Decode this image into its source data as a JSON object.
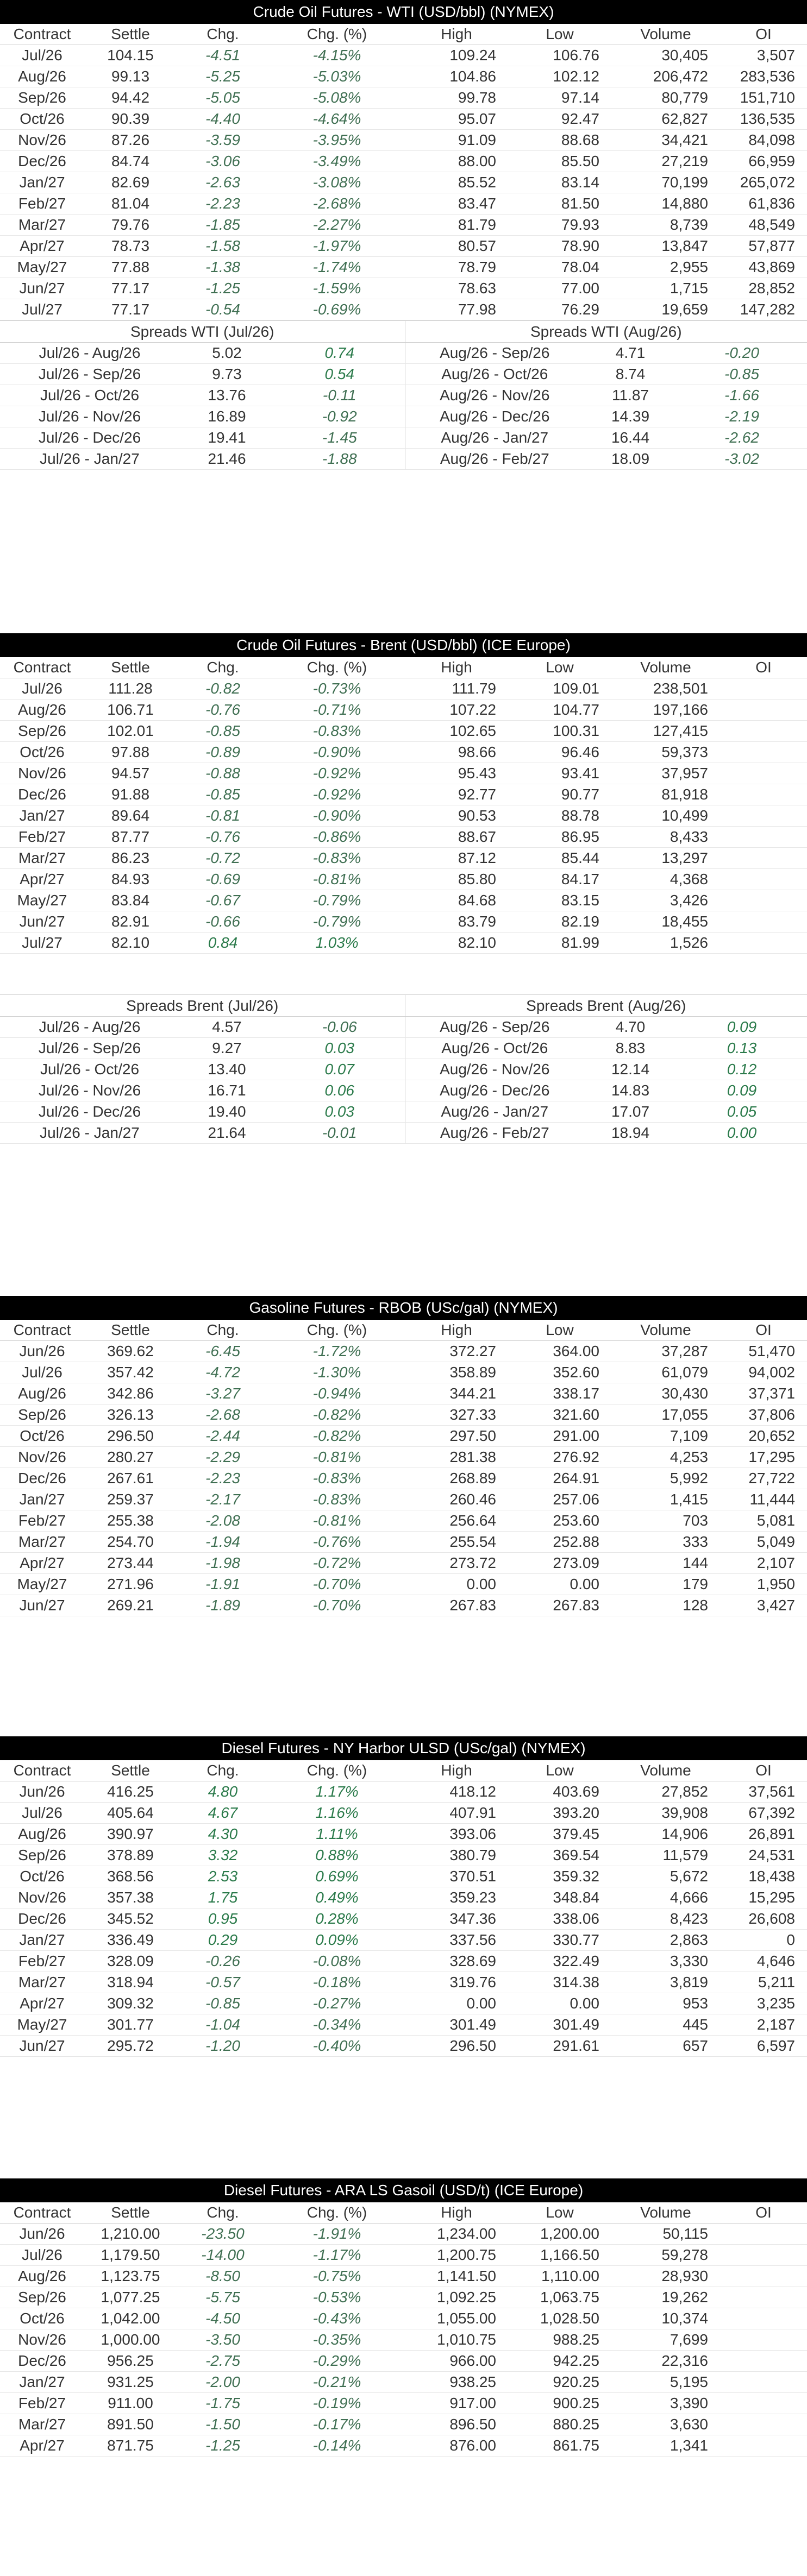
{
  "wti": {
    "title": "Crude Oil Futures - WTI (USD/bbl) (NYMEX)",
    "headers": [
      "Contract",
      "Settle",
      "Chg.",
      "Chg. (%)",
      "High",
      "Low",
      "Volume",
      "OI"
    ],
    "rows": [
      [
        "Jul/26",
        "104.15",
        "-4.51",
        "-4.15%",
        "109.24",
        "106.76",
        "30,405",
        "3,507"
      ],
      [
        "Aug/26",
        "99.13",
        "-5.25",
        "-5.03%",
        "104.86",
        "102.12",
        "206,472",
        "283,536"
      ],
      [
        "Sep/26",
        "94.42",
        "-5.05",
        "-5.08%",
        "99.78",
        "97.14",
        "80,779",
        "151,710"
      ],
      [
        "Oct/26",
        "90.39",
        "-4.40",
        "-4.64%",
        "95.07",
        "92.47",
        "62,827",
        "136,535"
      ],
      [
        "Nov/26",
        "87.26",
        "-3.59",
        "-3.95%",
        "91.09",
        "88.68",
        "34,421",
        "84,098"
      ],
      [
        "Dec/26",
        "84.74",
        "-3.06",
        "-3.49%",
        "88.00",
        "85.50",
        "27,219",
        "66,959"
      ],
      [
        "Jan/27",
        "82.69",
        "-2.63",
        "-3.08%",
        "85.52",
        "83.14",
        "70,199",
        "265,072"
      ],
      [
        "Feb/27",
        "81.04",
        "-2.23",
        "-2.68%",
        "83.47",
        "81.50",
        "14,880",
        "61,836"
      ],
      [
        "Mar/27",
        "79.76",
        "-1.85",
        "-2.27%",
        "81.79",
        "79.93",
        "8,739",
        "48,549"
      ],
      [
        "Apr/27",
        "78.73",
        "-1.58",
        "-1.97%",
        "80.57",
        "78.90",
        "13,847",
        "57,877"
      ],
      [
        "May/27",
        "77.88",
        "-1.38",
        "-1.74%",
        "78.79",
        "78.04",
        "2,955",
        "43,869"
      ],
      [
        "Jun/27",
        "77.17",
        "-1.25",
        "-1.59%",
        "78.63",
        "77.00",
        "1,715",
        "28,852"
      ],
      [
        "Jul/27",
        "77.17",
        "-0.54",
        "-0.69%",
        "77.98",
        "76.29",
        "19,659",
        "147,282"
      ]
    ],
    "spreads_left_title": "Spreads WTI (Jul/26)",
    "spreads_right_title": "Spreads WTI (Aug/26)",
    "spreads": [
      [
        "Jul/26 - Aug/26",
        "5.02",
        "0.74",
        "Aug/26 - Sep/26",
        "4.71",
        "-0.20"
      ],
      [
        "Jul/26 - Sep/26",
        "9.73",
        "0.54",
        "Aug/26 - Oct/26",
        "8.74",
        "-0.85"
      ],
      [
        "Jul/26 - Oct/26",
        "13.76",
        "-0.11",
        "Aug/26 - Nov/26",
        "11.87",
        "-1.66"
      ],
      [
        "Jul/26 - Nov/26",
        "16.89",
        "-0.92",
        "Aug/26 - Dec/26",
        "14.39",
        "-2.19"
      ],
      [
        "Jul/26 - Dec/26",
        "19.41",
        "-1.45",
        "Aug/26 - Jan/27",
        "16.44",
        "-2.62"
      ],
      [
        "Jul/26 - Jan/27",
        "21.46",
        "-1.88",
        "Aug/26 - Feb/27",
        "18.09",
        "-3.02"
      ]
    ]
  },
  "brent": {
    "title": "Crude Oil Futures - Brent (USD/bbl) (ICE Europe)",
    "headers": [
      "Contract",
      "Settle",
      "Chg.",
      "Chg. (%)",
      "High",
      "Low",
      "Volume",
      "OI"
    ],
    "rows": [
      [
        "Jul/26",
        "111.28",
        "-0.82",
        "-0.73%",
        "111.79",
        "109.01",
        "238,501",
        ""
      ],
      [
        "Aug/26",
        "106.71",
        "-0.76",
        "-0.71%",
        "107.22",
        "104.77",
        "197,166",
        ""
      ],
      [
        "Sep/26",
        "102.01",
        "-0.85",
        "-0.83%",
        "102.65",
        "100.31",
        "127,415",
        ""
      ],
      [
        "Oct/26",
        "97.88",
        "-0.89",
        "-0.90%",
        "98.66",
        "96.46",
        "59,373",
        ""
      ],
      [
        "Nov/26",
        "94.57",
        "-0.88",
        "-0.92%",
        "95.43",
        "93.41",
        "37,957",
        ""
      ],
      [
        "Dec/26",
        "91.88",
        "-0.85",
        "-0.92%",
        "92.77",
        "90.77",
        "81,918",
        ""
      ],
      [
        "Jan/27",
        "89.64",
        "-0.81",
        "-0.90%",
        "90.53",
        "88.78",
        "10,499",
        ""
      ],
      [
        "Feb/27",
        "87.77",
        "-0.76",
        "-0.86%",
        "88.67",
        "86.95",
        "8,433",
        ""
      ],
      [
        "Mar/27",
        "86.23",
        "-0.72",
        "-0.83%",
        "87.12",
        "85.44",
        "13,297",
        ""
      ],
      [
        "Apr/27",
        "84.93",
        "-0.69",
        "-0.81%",
        "85.80",
        "84.17",
        "4,368",
        ""
      ],
      [
        "May/27",
        "83.84",
        "-0.67",
        "-0.79%",
        "84.68",
        "83.15",
        "3,426",
        ""
      ],
      [
        "Jun/27",
        "82.91",
        "-0.66",
        "-0.79%",
        "83.79",
        "82.19",
        "18,455",
        ""
      ],
      [
        "Jul/27",
        "82.10",
        "0.84",
        "1.03%",
        "82.10",
        "81.99",
        "1,526",
        ""
      ]
    ],
    "spreads_left_title": "Spreads Brent (Jul/26)",
    "spreads_right_title": "Spreads Brent (Aug/26)",
    "spreads": [
      [
        "Jul/26 - Aug/26",
        "4.57",
        "-0.06",
        "Aug/26 - Sep/26",
        "4.70",
        "0.09"
      ],
      [
        "Jul/26 - Sep/26",
        "9.27",
        "0.03",
        "Aug/26 - Oct/26",
        "8.83",
        "0.13"
      ],
      [
        "Jul/26 - Oct/26",
        "13.40",
        "0.07",
        "Aug/26 - Nov/26",
        "12.14",
        "0.12"
      ],
      [
        "Jul/26 - Nov/26",
        "16.71",
        "0.06",
        "Aug/26 - Dec/26",
        "14.83",
        "0.09"
      ],
      [
        "Jul/26 - Dec/26",
        "19.40",
        "0.03",
        "Aug/26 - Jan/27",
        "17.07",
        "0.05"
      ],
      [
        "Jul/26 - Jan/27",
        "21.64",
        "-0.01",
        "Aug/26 - Feb/27",
        "18.94",
        "0.00"
      ]
    ]
  },
  "rbob": {
    "title": "Gasoline Futures - RBOB (USc/gal) (NYMEX)",
    "headers": [
      "Contract",
      "Settle",
      "Chg.",
      "Chg. (%)",
      "High",
      "Low",
      "Volume",
      "OI"
    ],
    "rows": [
      [
        "Jun/26",
        "369.62",
        "-6.45",
        "-1.72%",
        "372.27",
        "364.00",
        "37,287",
        "51,470"
      ],
      [
        "Jul/26",
        "357.42",
        "-4.72",
        "-1.30%",
        "358.89",
        "352.60",
        "61,079",
        "94,002"
      ],
      [
        "Aug/26",
        "342.86",
        "-3.27",
        "-0.94%",
        "344.21",
        "338.17",
        "30,430",
        "37,371"
      ],
      [
        "Sep/26",
        "326.13",
        "-2.68",
        "-0.82%",
        "327.33",
        "321.60",
        "17,055",
        "37,806"
      ],
      [
        "Oct/26",
        "296.50",
        "-2.44",
        "-0.82%",
        "297.50",
        "291.00",
        "7,109",
        "20,652"
      ],
      [
        "Nov/26",
        "280.27",
        "-2.29",
        "-0.81%",
        "281.38",
        "276.92",
        "4,253",
        "17,295"
      ],
      [
        "Dec/26",
        "267.61",
        "-2.23",
        "-0.83%",
        "268.89",
        "264.91",
        "5,992",
        "27,722"
      ],
      [
        "Jan/27",
        "259.37",
        "-2.17",
        "-0.83%",
        "260.46",
        "257.06",
        "1,415",
        "11,444"
      ],
      [
        "Feb/27",
        "255.38",
        "-2.08",
        "-0.81%",
        "256.64",
        "253.60",
        "703",
        "5,081"
      ],
      [
        "Mar/27",
        "254.70",
        "-1.94",
        "-0.76%",
        "255.54",
        "252.88",
        "333",
        "5,049"
      ],
      [
        "Apr/27",
        "273.44",
        "-1.98",
        "-0.72%",
        "273.72",
        "273.09",
        "144",
        "2,107"
      ],
      [
        "May/27",
        "271.96",
        "-1.91",
        "-0.70%",
        "0.00",
        "0.00",
        "179",
        "1,950"
      ],
      [
        "Jun/27",
        "269.21",
        "-1.89",
        "-0.70%",
        "267.83",
        "267.83",
        "128",
        "3,427"
      ]
    ]
  },
  "ulsd": {
    "title": "Diesel Futures - NY Harbor ULSD (USc/gal) (NYMEX)",
    "headers": [
      "Contract",
      "Settle",
      "Chg.",
      "Chg. (%)",
      "High",
      "Low",
      "Volume",
      "OI"
    ],
    "rows": [
      [
        "Jun/26",
        "416.25",
        "4.80",
        "1.17%",
        "418.12",
        "403.69",
        "27,852",
        "37,561"
      ],
      [
        "Jul/26",
        "405.64",
        "4.67",
        "1.16%",
        "407.91",
        "393.20",
        "39,908",
        "67,392"
      ],
      [
        "Aug/26",
        "390.97",
        "4.30",
        "1.11%",
        "393.06",
        "379.45",
        "14,906",
        "26,891"
      ],
      [
        "Sep/26",
        "378.89",
        "3.32",
        "0.88%",
        "380.79",
        "369.54",
        "11,579",
        "24,531"
      ],
      [
        "Oct/26",
        "368.56",
        "2.53",
        "0.69%",
        "370.51",
        "359.32",
        "5,672",
        "18,438"
      ],
      [
        "Nov/26",
        "357.38",
        "1.75",
        "0.49%",
        "359.23",
        "348.84",
        "4,666",
        "15,295"
      ],
      [
        "Dec/26",
        "345.52",
        "0.95",
        "0.28%",
        "347.36",
        "338.06",
        "8,423",
        "26,608"
      ],
      [
        "Jan/27",
        "336.49",
        "0.29",
        "0.09%",
        "337.56",
        "330.77",
        "2,863",
        "0"
      ],
      [
        "Feb/27",
        "328.09",
        "-0.26",
        "-0.08%",
        "328.69",
        "322.49",
        "3,330",
        "4,646"
      ],
      [
        "Mar/27",
        "318.94",
        "-0.57",
        "-0.18%",
        "319.76",
        "314.38",
        "3,819",
        "5,211"
      ],
      [
        "Apr/27",
        "309.32",
        "-0.85",
        "-0.27%",
        "0.00",
        "0.00",
        "953",
        "3,235"
      ],
      [
        "May/27",
        "301.77",
        "-1.04",
        "-0.34%",
        "301.49",
        "301.49",
        "445",
        "2,187"
      ],
      [
        "Jun/27",
        "295.72",
        "-1.20",
        "-0.40%",
        "296.50",
        "291.61",
        "657",
        "6,597"
      ]
    ]
  },
  "gasoil": {
    "title": "Diesel Futures - ARA LS Gasoil (USD/t) (ICE Europe)",
    "headers": [
      "Contract",
      "Settle",
      "Chg.",
      "Chg. (%)",
      "High",
      "Low",
      "Volume",
      "OI"
    ],
    "rows": [
      [
        "Jun/26",
        "1,210.00",
        "-23.50",
        "-1.91%",
        "1,234.00",
        "1,200.00",
        "50,115",
        ""
      ],
      [
        "Jul/26",
        "1,179.50",
        "-14.00",
        "-1.17%",
        "1,200.75",
        "1,166.50",
        "59,278",
        ""
      ],
      [
        "Aug/26",
        "1,123.75",
        "-8.50",
        "-0.75%",
        "1,141.50",
        "1,110.00",
        "28,930",
        ""
      ],
      [
        "Sep/26",
        "1,077.25",
        "-5.75",
        "-0.53%",
        "1,092.25",
        "1,063.75",
        "19,262",
        ""
      ],
      [
        "Oct/26",
        "1,042.00",
        "-4.50",
        "-0.43%",
        "1,055.00",
        "1,028.50",
        "10,374",
        ""
      ],
      [
        "Nov/26",
        "1,000.00",
        "-3.50",
        "-0.35%",
        "1,010.75",
        "988.25",
        "7,699",
        ""
      ],
      [
        "Dec/26",
        "956.25",
        "-2.75",
        "-0.29%",
        "966.00",
        "942.25",
        "22,316",
        ""
      ],
      [
        "Jan/27",
        "931.25",
        "-2.00",
        "-0.21%",
        "938.25",
        "920.25",
        "5,195",
        ""
      ],
      [
        "Feb/27",
        "911.00",
        "-1.75",
        "-0.19%",
        "917.00",
        "900.25",
        "3,390",
        ""
      ],
      [
        "Mar/27",
        "891.50",
        "-1.50",
        "-0.17%",
        "896.50",
        "880.25",
        "3,630",
        ""
      ],
      [
        "Apr/27",
        "871.75",
        "-1.25",
        "-0.14%",
        "876.00",
        "861.75",
        "1,341",
        ""
      ]
    ]
  }
}
